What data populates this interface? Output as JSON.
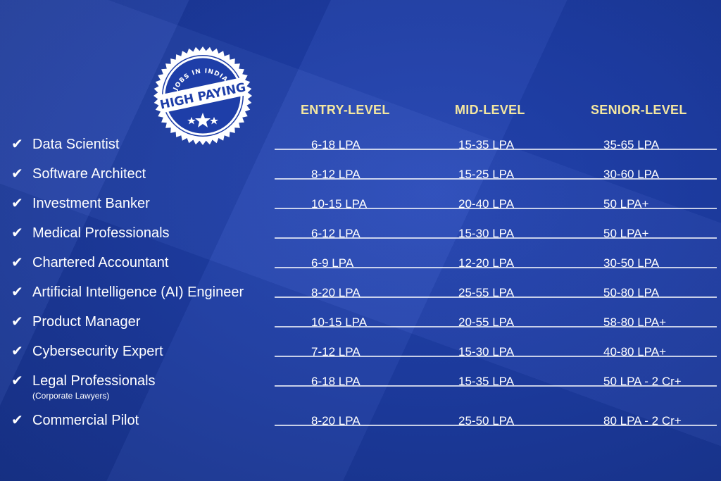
{
  "badge": {
    "top_text": "JOBS IN INDIA",
    "main_text": "HIGH PAYING"
  },
  "columns": {
    "entry": "ENTRY-LEVEL",
    "mid": "MID-LEVEL",
    "senior": "SENIOR-LEVEL"
  },
  "check_glyph": "✔",
  "rows": [
    {
      "job": "Data Scientist",
      "sub": "",
      "entry": "6-18 LPA",
      "mid": "15-35 LPA",
      "senior": "35-65 LPA"
    },
    {
      "job": "Software Architect",
      "sub": "",
      "entry": "8-12 LPA",
      "mid": "15-25 LPA",
      "senior": "30-60 LPA"
    },
    {
      "job": "Investment Banker",
      "sub": "",
      "entry": "10-15 LPA",
      "mid": "20-40 LPA",
      "senior": "50 LPA+"
    },
    {
      "job": "Medical Professionals",
      "sub": "",
      "entry": "6-12 LPA",
      "mid": "15-30 LPA",
      "senior": "50 LPA+"
    },
    {
      "job": "Chartered Accountant",
      "sub": "",
      "entry": "6-9 LPA",
      "mid": "12-20 LPA",
      "senior": "30-50 LPA"
    },
    {
      "job": "Artificial Intelligence (AI) Engineer",
      "sub": "",
      "entry": "8-20 LPA",
      "mid": "25-55 LPA",
      "senior": "50-80 LPA"
    },
    {
      "job": "Product Manager",
      "sub": "",
      "entry": "10-15 LPA",
      "mid": "20-55 LPA",
      "senior": "58-80 LPA+"
    },
    {
      "job": "Cybersecurity Expert",
      "sub": "",
      "entry": "7-12 LPA",
      "mid": "15-30 LPA",
      "senior": "40-80 LPA+"
    },
    {
      "job": "Legal Professionals",
      "sub": "(Corporate Lawyers)",
      "entry": "6-18 LPA",
      "mid": "15-35 LPA",
      "senior": "50 LPA - 2 Cr+"
    },
    {
      "job": "Commercial Pilot",
      "sub": "",
      "entry": "8-20 LPA",
      "mid": "25-50 LPA",
      "senior": "80 LPA - 2 Cr+"
    }
  ],
  "colors": {
    "background": "#1e3ea8",
    "header_text": "#f4e7a0",
    "body_text": "#ffffff"
  }
}
